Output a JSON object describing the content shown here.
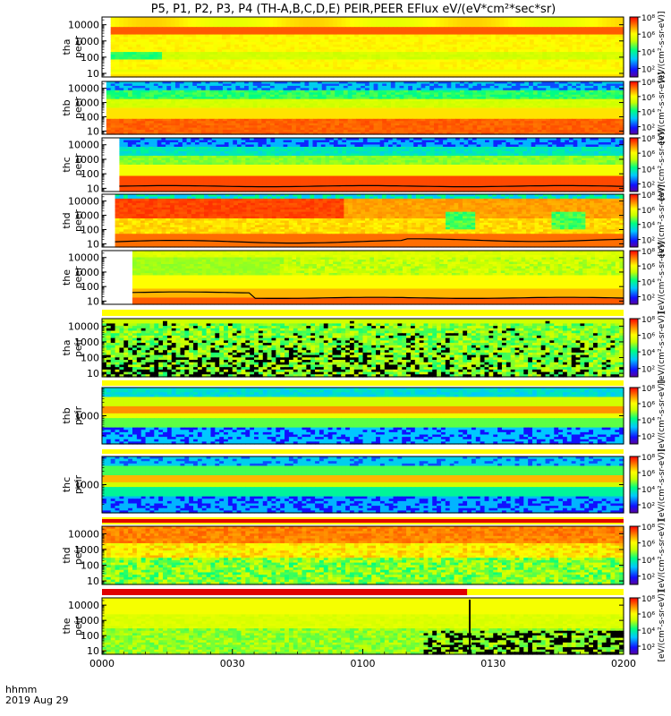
{
  "chart_data": {
    "type": "heatmap",
    "title": "P5, P1, P2, P3, P4 (TH-A,B,C,D,E) PEIR,PEER EFlux eV/(eV*cm²*sec*sr)",
    "x_tick_labels": [
      "0000",
      "0030",
      "0100",
      "0130",
      "0200"
    ],
    "x_range": [
      "0000",
      "0200"
    ],
    "x_label_line1": "hhmm",
    "x_label_line2": "2019 Aug 29",
    "colorbar_label": "[eV/(cm²-s-sr-eV)]",
    "colorbar_tick_labels": [
      "10²",
      "10⁴",
      "10⁶",
      "10⁸"
    ],
    "colorbar_range_exponent": [
      1,
      8
    ],
    "y_scale": "log",
    "panels": [
      {
        "name": "tha peer",
        "ylabel": [
          "tha",
          "peer"
        ],
        "yticks": [
          "10",
          "100",
          "1000",
          "10000"
        ],
        "ylim": [
          6,
          30000
        ],
        "data_start": "0002",
        "profile": "tha_peer",
        "boundary": false
      },
      {
        "name": "thb peer",
        "ylabel": [
          "thb",
          "peer"
        ],
        "yticks": [
          "10",
          "100",
          "1000",
          "10000"
        ],
        "ylim": [
          6,
          30000
        ],
        "data_start": "0001",
        "profile": "thb_peer",
        "boundary": false
      },
      {
        "name": "thc peer",
        "ylabel": [
          "thc",
          "peer"
        ],
        "yticks": [
          "10",
          "100",
          "1000",
          "10000"
        ],
        "ylim": [
          6,
          30000
        ],
        "data_start": "0004",
        "profile": "thc_peer",
        "boundary": true
      },
      {
        "name": "thd peer",
        "ylabel": [
          "thd",
          "peer"
        ],
        "yticks": [
          "10",
          "100",
          "1000",
          "10000"
        ],
        "ylim": [
          6,
          30000
        ],
        "data_start": "0003",
        "profile": "thd_peer",
        "boundary": true
      },
      {
        "name": "the peer",
        "ylabel": [
          "the",
          "peer"
        ],
        "yticks": [
          "10",
          "100",
          "1000",
          "10000"
        ],
        "ylim": [
          6,
          30000
        ],
        "data_start": "0007",
        "profile": "the_peer",
        "boundary": true
      },
      {
        "name": "tha peir",
        "ylabel": [
          "tha",
          "peir"
        ],
        "yticks": [
          "10",
          "100",
          "1000",
          "10000"
        ],
        "ylim": [
          6,
          30000
        ],
        "data_start": "0000",
        "profile": "tha_peir",
        "boundary": false
      },
      {
        "name": "thb peir",
        "ylabel": [
          "thb",
          "peir"
        ],
        "yticks": [
          "1000"
        ],
        "ylim": [
          100,
          10000
        ],
        "data_start": "0000",
        "profile": "thb_peir",
        "boundary": false
      },
      {
        "name": "thc peir",
        "ylabel": [
          "thc",
          "peir"
        ],
        "yticks": [
          "1000"
        ],
        "ylim": [
          100,
          10000
        ],
        "data_start": "0000",
        "profile": "thc_peir",
        "boundary": false
      },
      {
        "name": "thd peir",
        "ylabel": [
          "thd",
          "peir"
        ],
        "yticks": [
          "10",
          "100",
          "1000",
          "10000"
        ],
        "ylim": [
          6,
          30000
        ],
        "data_start": "0000",
        "profile": "thd_peir",
        "boundary": false
      },
      {
        "name": "the peir",
        "ylabel": [
          "the",
          "peir"
        ],
        "yticks": [
          "10",
          "100",
          "1000",
          "10000"
        ],
        "ylim": [
          6,
          30000
        ],
        "data_start": "0000",
        "profile": "the_peir",
        "boundary": false
      }
    ]
  }
}
